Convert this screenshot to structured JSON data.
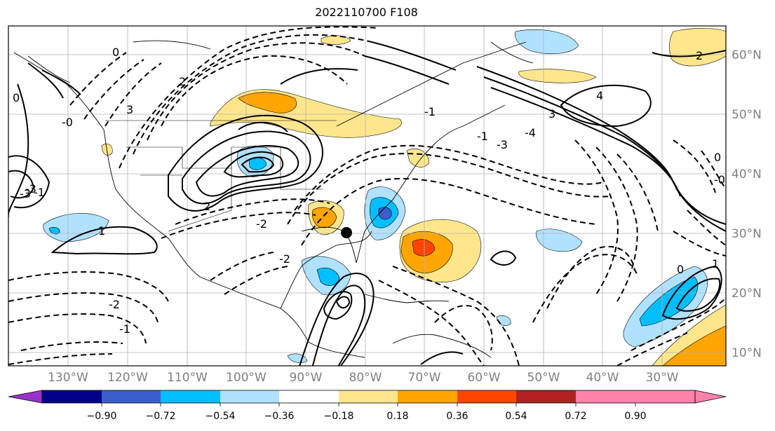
{
  "title": "2022110700 F108",
  "map": {
    "lon_labels": [
      "130°W",
      "120°W",
      "110°W",
      "100°W",
      "90°W",
      "80°W",
      "70°W",
      "60°W",
      "50°W",
      "40°W",
      "30°W"
    ],
    "lat_labels": [
      "60°N",
      "50°N",
      "40°N",
      "30°N",
      "20°N",
      "10°N"
    ],
    "marker_label": "",
    "contour_labels": [
      "0",
      "2",
      "3",
      "4",
      "-2",
      "-1",
      "-3",
      "1",
      "-0",
      "-1",
      "2",
      "3",
      "0",
      "-4",
      "-3",
      "0",
      "-2",
      "1",
      "0",
      "2",
      "-2",
      "-1",
      "-0",
      "-1",
      "-3"
    ]
  },
  "colorbar": {
    "ticks": [
      "−0.90",
      "−0.72",
      "−0.54",
      "−0.36",
      "−0.18",
      "0.18",
      "0.36",
      "0.54",
      "0.72",
      "0.90"
    ],
    "colors": [
      "#9932cc",
      "#00008b",
      "#3a5fcd",
      "#00bfff",
      "#b0e2ff",
      "#ffffff",
      "#ffe68c",
      "#ffa500",
      "#ff4500",
      "#b22222",
      "#ff82ab"
    ]
  }
}
